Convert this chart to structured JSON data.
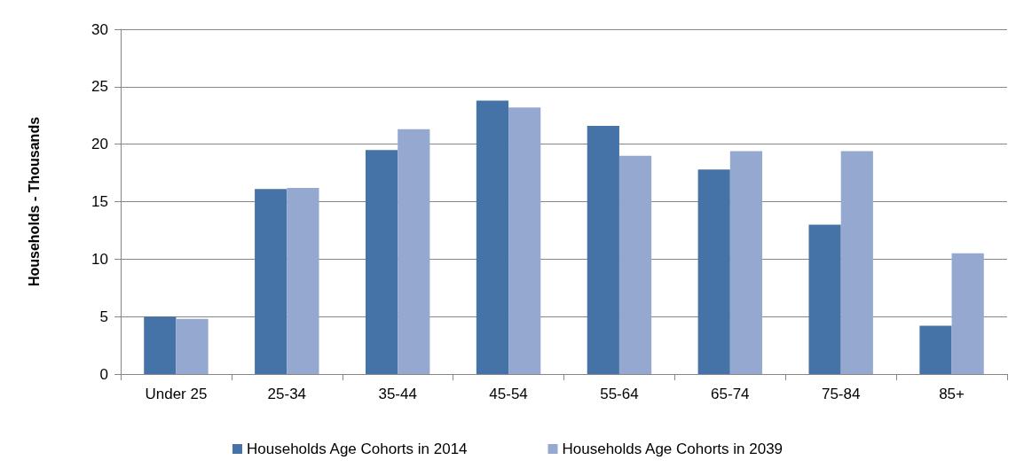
{
  "chart_data": {
    "type": "bar",
    "ylabel": "Households - Thousands",
    "categories": [
      "Under 25",
      "25-34",
      "35-44",
      "45-54",
      "55-64",
      "65-74",
      "75-84",
      "85+"
    ],
    "series": [
      {
        "name": "Households Age Cohorts in 2014",
        "color": "#4673a7",
        "values": [
          5.0,
          16.1,
          19.5,
          23.8,
          21.6,
          17.8,
          13.0,
          4.2
        ]
      },
      {
        "name": "Households Age Cohorts in 2039",
        "color": "#95a9d0",
        "values": [
          4.8,
          16.2,
          21.3,
          23.2,
          19.0,
          19.4,
          19.4,
          10.5
        ]
      }
    ],
    "ylim": [
      0,
      30
    ],
    "yticks": [
      0,
      5,
      10,
      15,
      20,
      25,
      30
    ],
    "grid": "y",
    "legend": "bottom"
  }
}
